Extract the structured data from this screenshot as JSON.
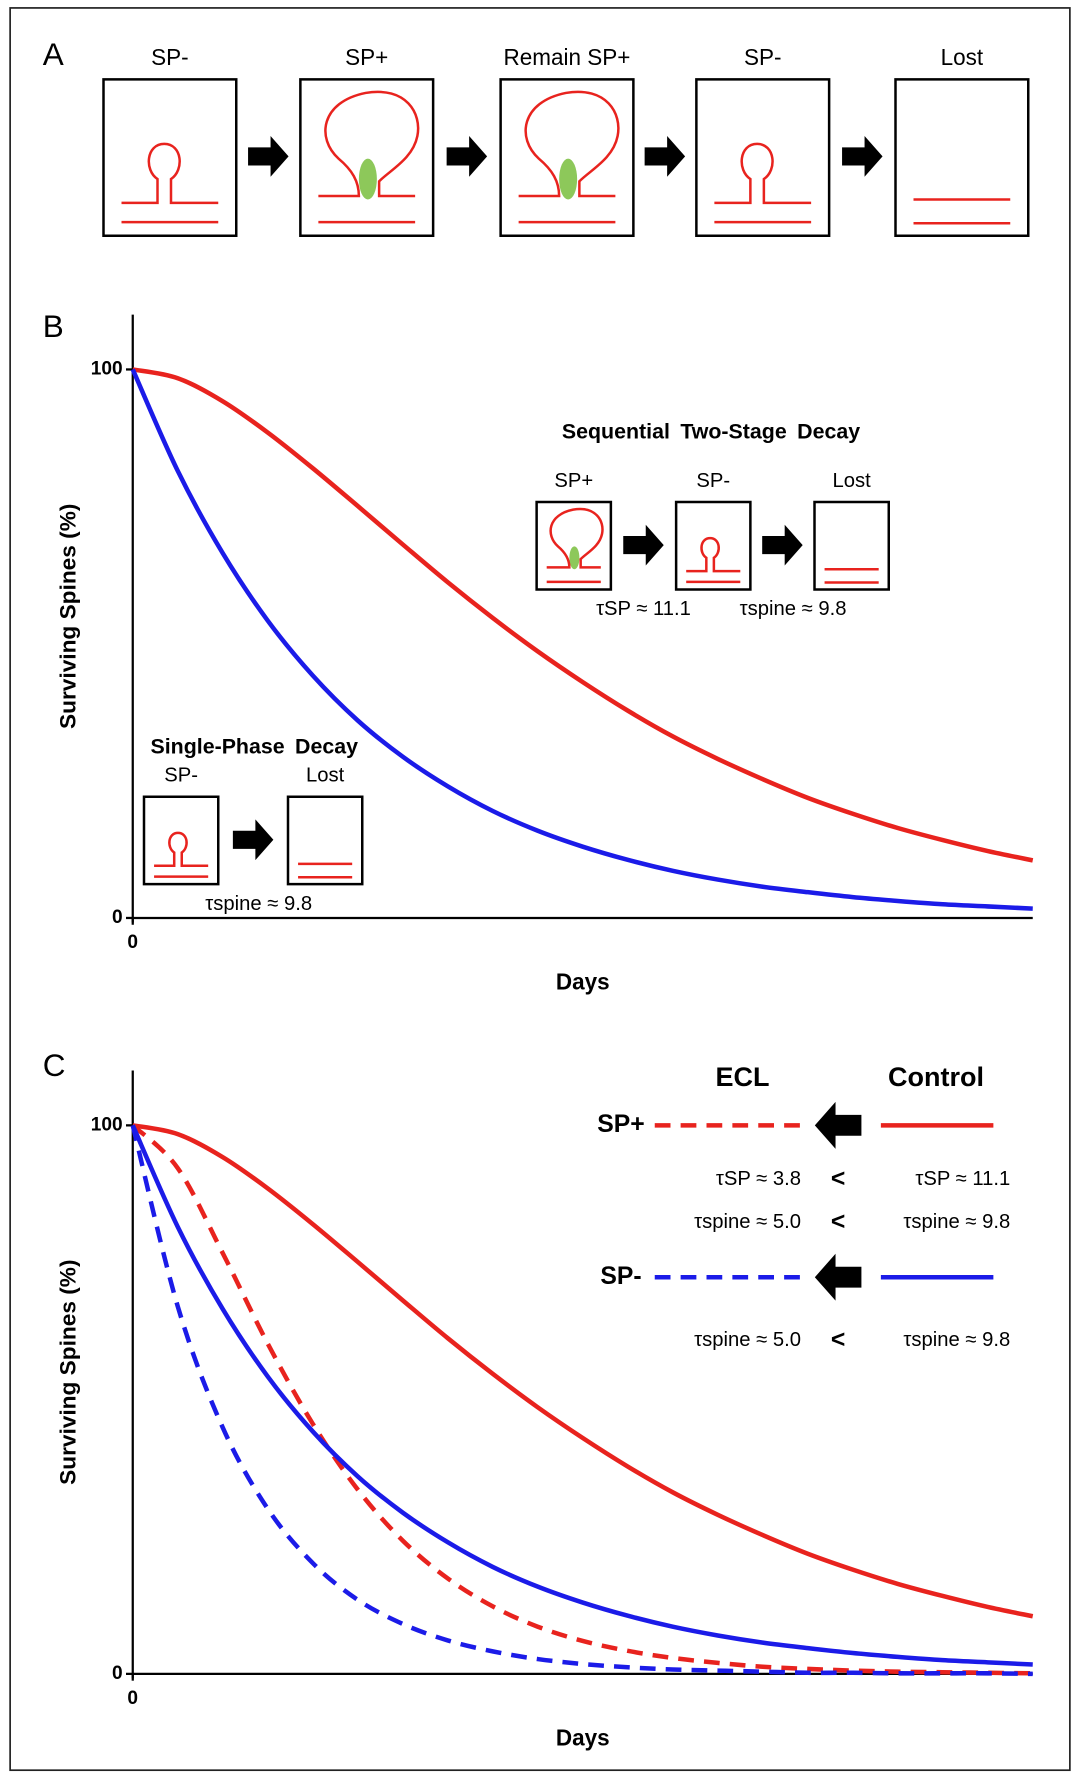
{
  "panel_a": {
    "label": "A",
    "stages": [
      "SP-",
      "SP+",
      "Remain SP+",
      "SP-",
      "Lost"
    ]
  },
  "chart_data": [
    {
      "type": "line",
      "panel_label": "B",
      "y_label": "Surviving Spines (%)",
      "x_label": "Days",
      "x": [
        0,
        2,
        4,
        6,
        8,
        10,
        12,
        14,
        16,
        18,
        20,
        22,
        24,
        26,
        28,
        30,
        32,
        34,
        36,
        38,
        40
      ],
      "xlim": [
        0,
        40
      ],
      "ylim": [
        0,
        110
      ],
      "xticks": [
        0
      ],
      "yticks": [
        0,
        100
      ],
      "series": [
        {
          "color": "#e8231e",
          "dash": false,
          "values": [
            100,
            98.4,
            94.2,
            88.5,
            82.0,
            75.1,
            68.1,
            61.2,
            54.7,
            48.6,
            43.0,
            37.8,
            33.1,
            29.0,
            25.3,
            21.9,
            19.0,
            16.4,
            14.2,
            12.2,
            10.5
          ]
        },
        {
          "color": "#1b1be8",
          "dash": false,
          "values": [
            100,
            81.5,
            66.5,
            54.2,
            44.2,
            36.0,
            29.4,
            24.0,
            19.5,
            15.9,
            13.0,
            10.6,
            8.6,
            7.0,
            5.7,
            4.7,
            3.8,
            3.1,
            2.5,
            2.1,
            1.7
          ]
        }
      ],
      "insets": [
        {
          "title": "Sequential Two-Stage Decay",
          "stages": [
            "SP+",
            "SP-",
            "Lost"
          ],
          "notes": [
            "τSP ≈ 11.1",
            "τspine ≈ 9.8"
          ]
        },
        {
          "title": "Single-Phase Decay",
          "stages": [
            "SP-",
            "Lost"
          ],
          "notes": [
            "τspine ≈ 9.8"
          ]
        }
      ]
    },
    {
      "type": "line",
      "panel_label": "C",
      "y_label": "Surviving Spines (%)",
      "x_label": "Days",
      "x": [
        0,
        2,
        4,
        6,
        8,
        10,
        12,
        14,
        16,
        18,
        20,
        22,
        24,
        26,
        28,
        30,
        32,
        34,
        36,
        38,
        40
      ],
      "xlim": [
        0,
        40
      ],
      "ylim": [
        0,
        110
      ],
      "xticks": [
        0
      ],
      "yticks": [
        0,
        100
      ],
      "series": [
        {
          "color": "#e8231e",
          "dash": true,
          "values": [
            100,
            92.2,
            76.7,
            60.2,
            45.6,
            33.6,
            24.3,
            17.4,
            12.3,
            8.6,
            6.0,
            4.2,
            2.9,
            2.0,
            1.3,
            0.9,
            0.6,
            0.4,
            0.3,
            0.2,
            0.1
          ]
        },
        {
          "color": "#e8231e",
          "dash": false,
          "values": [
            100,
            98.4,
            94.2,
            88.5,
            82.0,
            75.1,
            68.1,
            61.2,
            54.7,
            48.6,
            43.0,
            37.8,
            33.1,
            29.0,
            25.3,
            21.9,
            19.0,
            16.4,
            14.2,
            12.2,
            10.5
          ]
        },
        {
          "color": "#1b1be8",
          "dash": true,
          "values": [
            100,
            67.0,
            44.9,
            30.1,
            20.2,
            13.5,
            9.1,
            6.1,
            4.1,
            2.7,
            1.8,
            1.2,
            0.8,
            0.6,
            0.4,
            0.2,
            0.2,
            0.1,
            0.1,
            0.1,
            0.0
          ]
        },
        {
          "color": "#1b1be8",
          "dash": false,
          "values": [
            100,
            81.5,
            66.5,
            54.2,
            44.2,
            36.0,
            29.4,
            24.0,
            19.5,
            15.9,
            13.0,
            10.6,
            8.6,
            7.0,
            5.7,
            4.7,
            3.8,
            3.1,
            2.5,
            2.1,
            1.7
          ]
        }
      ],
      "legend": {
        "columns": [
          "ECL",
          "Control"
        ],
        "rows": [
          {
            "label": "SP+",
            "comparisons": [
              [
                "τSP ≈ 3.8",
                "<",
                "τSP ≈ 11.1"
              ],
              [
                "τspine ≈ 5.0",
                "<",
                "τspine ≈ 9.8"
              ]
            ]
          },
          {
            "label": "SP-",
            "comparisons": [
              [
                "τspine ≈ 5.0",
                "<",
                "τspine ≈ 9.8"
              ]
            ]
          }
        ]
      }
    }
  ]
}
